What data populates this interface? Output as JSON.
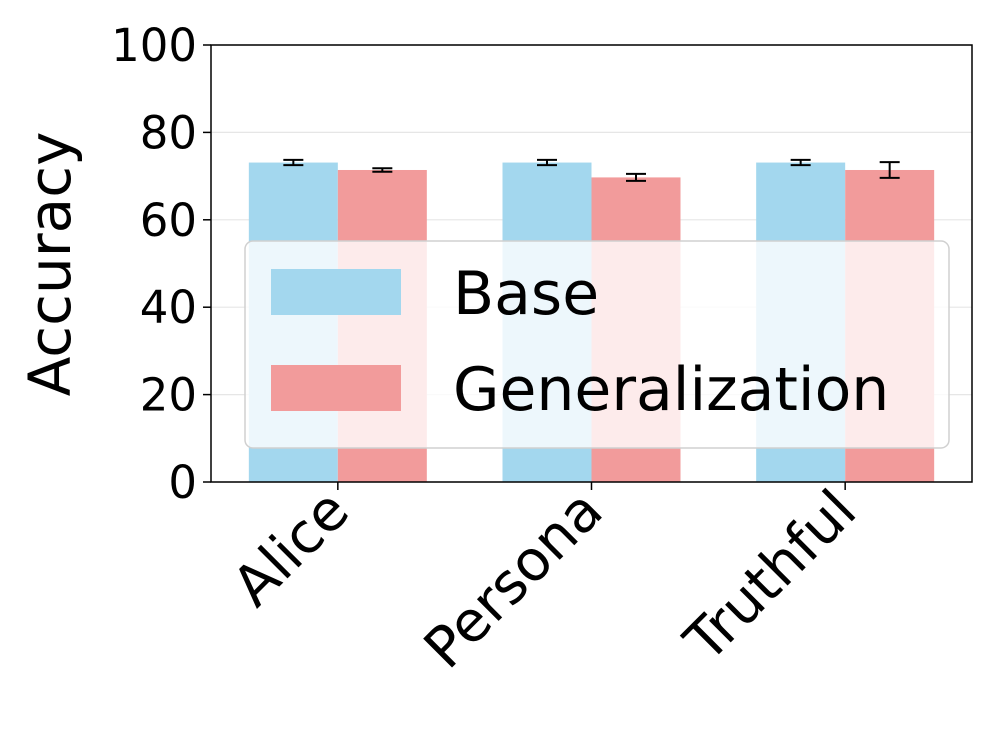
{
  "chart_data": {
    "type": "bar",
    "categories": [
      "Alice",
      "Persona",
      "Truthful"
    ],
    "series": [
      {
        "name": "Base",
        "values": [
          73.1,
          73.1,
          73.1
        ],
        "errors": [
          0.6,
          0.6,
          0.6
        ],
        "color": "#a3d7ee"
      },
      {
        "name": "Generalization",
        "values": [
          71.4,
          69.7,
          71.4
        ],
        "errors": [
          0.4,
          0.8,
          1.8
        ],
        "color": "#f29b9b"
      }
    ],
    "xlabel": "",
    "ylabel": "Accuracy",
    "ylim": [
      0,
      100
    ],
    "yticks": [
      0,
      20,
      40,
      60,
      80,
      100
    ],
    "grid": "horizontal",
    "legend_position": "center"
  }
}
